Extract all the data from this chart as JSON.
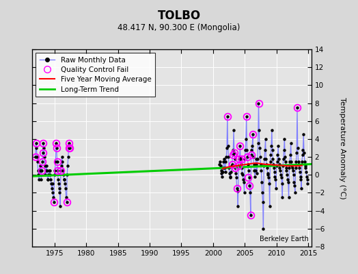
{
  "title": "TOLBO",
  "subtitle": "48.417 N, 90.300 E (Mongolia)",
  "ylabel": "Temperature Anomaly (°C)",
  "watermark": "Berkeley Earth",
  "xlim": [
    1971.5,
    2015.5
  ],
  "ylim": [
    -8,
    14
  ],
  "yticks": [
    -8,
    -6,
    -4,
    -2,
    0,
    2,
    4,
    6,
    8,
    10,
    12,
    14
  ],
  "xticks": [
    1975,
    1980,
    1985,
    1990,
    1995,
    2000,
    2005,
    2010,
    2015
  ],
  "bg_color": "#d8d8d8",
  "plot_bg_color": "#e4e4e4",
  "grid_color": "#ffffff",
  "raw_line_color": "#8080ff",
  "raw_dot_color": "#000000",
  "ma_color": "#ff0000",
  "trend_color": "#00cc00",
  "qc_color": "#ff00ff",
  "early_data": {
    "x": [
      1972.0,
      1972.08,
      1972.17,
      1972.25,
      1972.33,
      1972.42,
      1972.5,
      1972.58,
      1972.67,
      1972.75,
      1972.83,
      1972.92,
      1973.0,
      1973.08,
      1973.17,
      1973.25,
      1973.33,
      1973.42,
      1973.5,
      1973.58,
      1973.67,
      1973.75,
      1973.83,
      1973.92,
      1974.0,
      1974.08,
      1974.17,
      1974.25,
      1974.33,
      1974.42,
      1974.5,
      1974.58,
      1974.67,
      1974.75,
      1974.83,
      1974.92,
      1975.0,
      1975.08,
      1975.17,
      1975.25,
      1975.33,
      1975.42,
      1975.5,
      1975.58,
      1975.67,
      1975.75,
      1975.83,
      1975.92,
      1976.0,
      1976.08,
      1976.17,
      1976.25,
      1976.33,
      1976.42,
      1976.5,
      1976.58,
      1976.67,
      1976.75,
      1976.83,
      1976.92,
      1977.0,
      1977.08,
      1977.17,
      1977.25,
      1977.33,
      1977.42
    ],
    "y": [
      2.0,
      3.5,
      3.0,
      2.0,
      1.5,
      0.5,
      0.0,
      -0.5,
      0.5,
      1.0,
      0.5,
      -0.5,
      0.5,
      1.5,
      2.5,
      3.5,
      3.0,
      2.0,
      1.0,
      0.0,
      0.5,
      1.0,
      0.5,
      -0.5,
      -0.5,
      0.0,
      0.5,
      0.5,
      0.0,
      -0.5,
      -1.0,
      -1.5,
      -1.0,
      -2.0,
      -2.5,
      -3.0,
      0.0,
      0.5,
      1.5,
      3.5,
      3.0,
      1.5,
      0.5,
      -0.5,
      -1.0,
      -1.5,
      -2.0,
      -3.5,
      0.5,
      1.0,
      2.0,
      1.5,
      0.5,
      0.0,
      -0.5,
      -0.5,
      -1.0,
      -1.5,
      -2.5,
      -3.0,
      0.0,
      1.0,
      2.0,
      3.0,
      3.5,
      3.0
    ]
  },
  "late_data": {
    "2001": [
      1.2,
      1.5,
      1.0,
      0.5,
      0.2,
      -0.2,
      0.3,
      0.8,
      1.5,
      1.8,
      0.8,
      0.3
    ],
    "2002": [
      1.5,
      2.0,
      3.0,
      6.5,
      3.2,
      2.0,
      0.8,
      0.2,
      -0.2,
      -0.3,
      0.3,
      1.0
    ],
    "2003": [
      1.2,
      2.2,
      2.8,
      5.0,
      2.5,
      1.8,
      0.8,
      0.2,
      -0.3,
      -1.5,
      -1.8,
      -3.5
    ],
    "2004": [
      1.0,
      1.8,
      2.0,
      3.2,
      1.8,
      1.2,
      0.8,
      0.2,
      0.0,
      -0.5,
      -0.8,
      -2.0
    ],
    "2005": [
      1.8,
      2.8,
      4.0,
      6.5,
      2.8,
      2.0,
      1.2,
      0.5,
      -0.3,
      -1.2,
      -2.0,
      -4.5
    ],
    "2006": [
      2.2,
      2.8,
      3.2,
      4.5,
      2.0,
      1.2,
      0.5,
      -0.2,
      0.5,
      1.8,
      1.2,
      0.2
    ],
    "2007": [
      1.8,
      3.5,
      8.0,
      5.0,
      3.0,
      2.0,
      1.2,
      0.5,
      -0.8,
      -2.0,
      -3.0,
      -6.0
    ],
    "2008": [
      1.0,
      1.8,
      2.8,
      4.0,
      1.8,
      1.2,
      0.8,
      0.2,
      0.0,
      -0.3,
      -1.0,
      -3.5
    ],
    "2009": [
      1.5,
      2.2,
      3.2,
      5.0,
      2.8,
      1.8,
      1.2,
      0.8,
      0.3,
      -0.2,
      -0.5,
      -1.5
    ],
    "2010": [
      1.0,
      1.5,
      2.2,
      3.2,
      1.8,
      1.2,
      0.8,
      0.5,
      0.0,
      -0.3,
      -1.0,
      -2.5
    ],
    "2011": [
      1.0,
      1.8,
      2.8,
      4.0,
      2.0,
      1.5,
      0.8,
      0.5,
      0.0,
      -0.5,
      -0.8,
      -2.5
    ],
    "2012": [
      0.8,
      1.5,
      2.2,
      3.5,
      1.5,
      1.0,
      0.8,
      0.5,
      0.0,
      -0.8,
      -1.2,
      -2.0
    ],
    "2013": [
      0.8,
      1.5,
      2.5,
      7.5,
      3.0,
      1.5,
      1.2,
      0.8,
      0.3,
      -0.2,
      -0.5,
      -1.5
    ],
    "2014": [
      1.5,
      2.2,
      2.8,
      4.5,
      2.5,
      1.5,
      1.0,
      0.8,
      0.3,
      -0.2,
      -0.5,
      -1.0
    ]
  },
  "qc_early_x": [
    1972.0,
    1972.08,
    1973.0,
    1973.08,
    1973.17,
    1973.25,
    1974.92,
    1975.25,
    1975.33,
    1975.42,
    1975.5,
    1976.0,
    1976.92,
    1977.25,
    1977.33,
    1977.42
  ],
  "qc_early_y": [
    2.0,
    3.5,
    0.5,
    1.5,
    2.5,
    3.5,
    -3.0,
    3.5,
    3.0,
    1.5,
    0.5,
    0.5,
    -3.0,
    3.0,
    3.5,
    3.0
  ],
  "qc_late_x": [
    2002.25,
    2003.0,
    2003.08,
    2003.33,
    2003.5,
    2003.75,
    2004.0,
    2004.08,
    2004.25,
    2004.5,
    2005.25,
    2005.42,
    2005.5,
    2005.75,
    2005.92,
    2006.0,
    2006.25,
    2007.17,
    2013.25
  ],
  "qc_late_y": [
    6.5,
    1.2,
    2.2,
    2.5,
    0.8,
    -1.5,
    1.0,
    1.8,
    3.2,
    1.8,
    6.5,
    2.0,
    -0.3,
    -1.2,
    -4.5,
    2.2,
    4.5,
    8.0,
    7.5
  ],
  "trend_x": [
    1971.5,
    2015.5
  ],
  "trend_y": [
    -0.15,
    1.2
  ],
  "ma_x": [
    2001.5,
    2002.0,
    2002.5,
    2003.0,
    2003.5,
    2004.0,
    2004.5,
    2005.0,
    2005.5,
    2006.0,
    2006.5,
    2007.0,
    2007.5,
    2008.0,
    2008.5,
    2009.0,
    2009.5,
    2010.0,
    2010.5,
    2011.0,
    2011.5,
    2012.0,
    2012.5,
    2013.0,
    2013.5,
    2014.0
  ],
  "ma_y": [
    0.7,
    0.8,
    0.9,
    0.95,
    1.0,
    1.05,
    1.1,
    1.15,
    1.2,
    1.25,
    1.3,
    1.3,
    1.25,
    1.2,
    1.15,
    1.15,
    1.1,
    1.1,
    1.05,
    1.05,
    1.0,
    1.0,
    1.0,
    1.0,
    1.0,
    1.05
  ]
}
